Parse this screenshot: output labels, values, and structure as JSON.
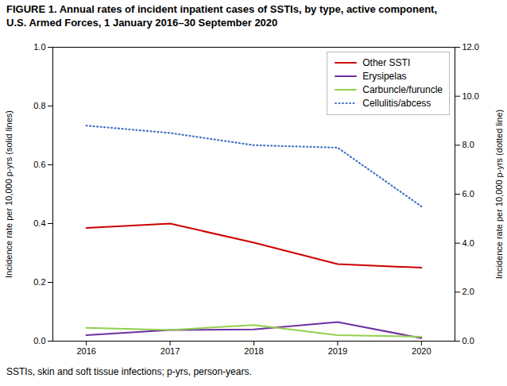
{
  "chart_data": {
    "type": "line",
    "title": "FIGURE 1. Annual rates of incident inpatient cases of SSTIs, by type, active component,\nU.S. Armed Forces, 1 January 2016–30 September 2020",
    "caption": "SSTIs, skin and soft tissue infections; p-yrs, person-years.",
    "x": [
      2016,
      2017,
      2018,
      2019,
      2020
    ],
    "xlim": [
      2015.6,
      2020.4
    ],
    "xticks": [
      2016,
      2017,
      2018,
      2019,
      2020
    ],
    "ylabel": "Incidence rate per 10,000 p-yrs (solid lines)",
    "y2label": "Incidence rate per 10,000 p-yrs (dotted line)",
    "ylim": [
      0.0,
      1.0
    ],
    "yticks": [
      {
        "value": 0,
        "label": "0.0"
      },
      0.2,
      0.4,
      0.6,
      0.8,
      {
        "value": 1,
        "label": "1.0"
      }
    ],
    "y2lim": [
      0.0,
      12.0
    ],
    "y2ticks": [
      {
        "value": 0,
        "label": "0.0"
      },
      {
        "value": 2,
        "label": "2.0"
      },
      {
        "value": 4,
        "label": "4.0"
      },
      {
        "value": 6,
        "label": "6.0"
      },
      {
        "value": 8,
        "label": "8.0"
      },
      {
        "value": 10,
        "label": "10.0"
      },
      {
        "value": 12,
        "label": "12.0"
      }
    ],
    "grid": false,
    "legend": "upper right",
    "series": [
      {
        "name": "Other SSTI",
        "color": "#cc0000",
        "line_style": "solid",
        "values": [
          0.385,
          0.4,
          0.335,
          0.262,
          0.25
        ]
      },
      {
        "name": "Erysipelas",
        "color": "#7030a0",
        "line_style": "solid",
        "values": [
          0.02,
          0.038,
          0.04,
          0.065,
          0.01
        ]
      },
      {
        "name": "Carbuncle/furuncle",
        "color": "#92d050",
        "line_style": "solid",
        "values": [
          0.045,
          0.038,
          0.055,
          0.02,
          0.015
        ]
      },
      {
        "name": "Cellulitis/abcess",
        "color": "#4472c4",
        "line_style": "dotted",
        "axis": "y2",
        "values": [
          8.8,
          8.5,
          8.0,
          7.9,
          5.5
        ]
      }
    ]
  }
}
